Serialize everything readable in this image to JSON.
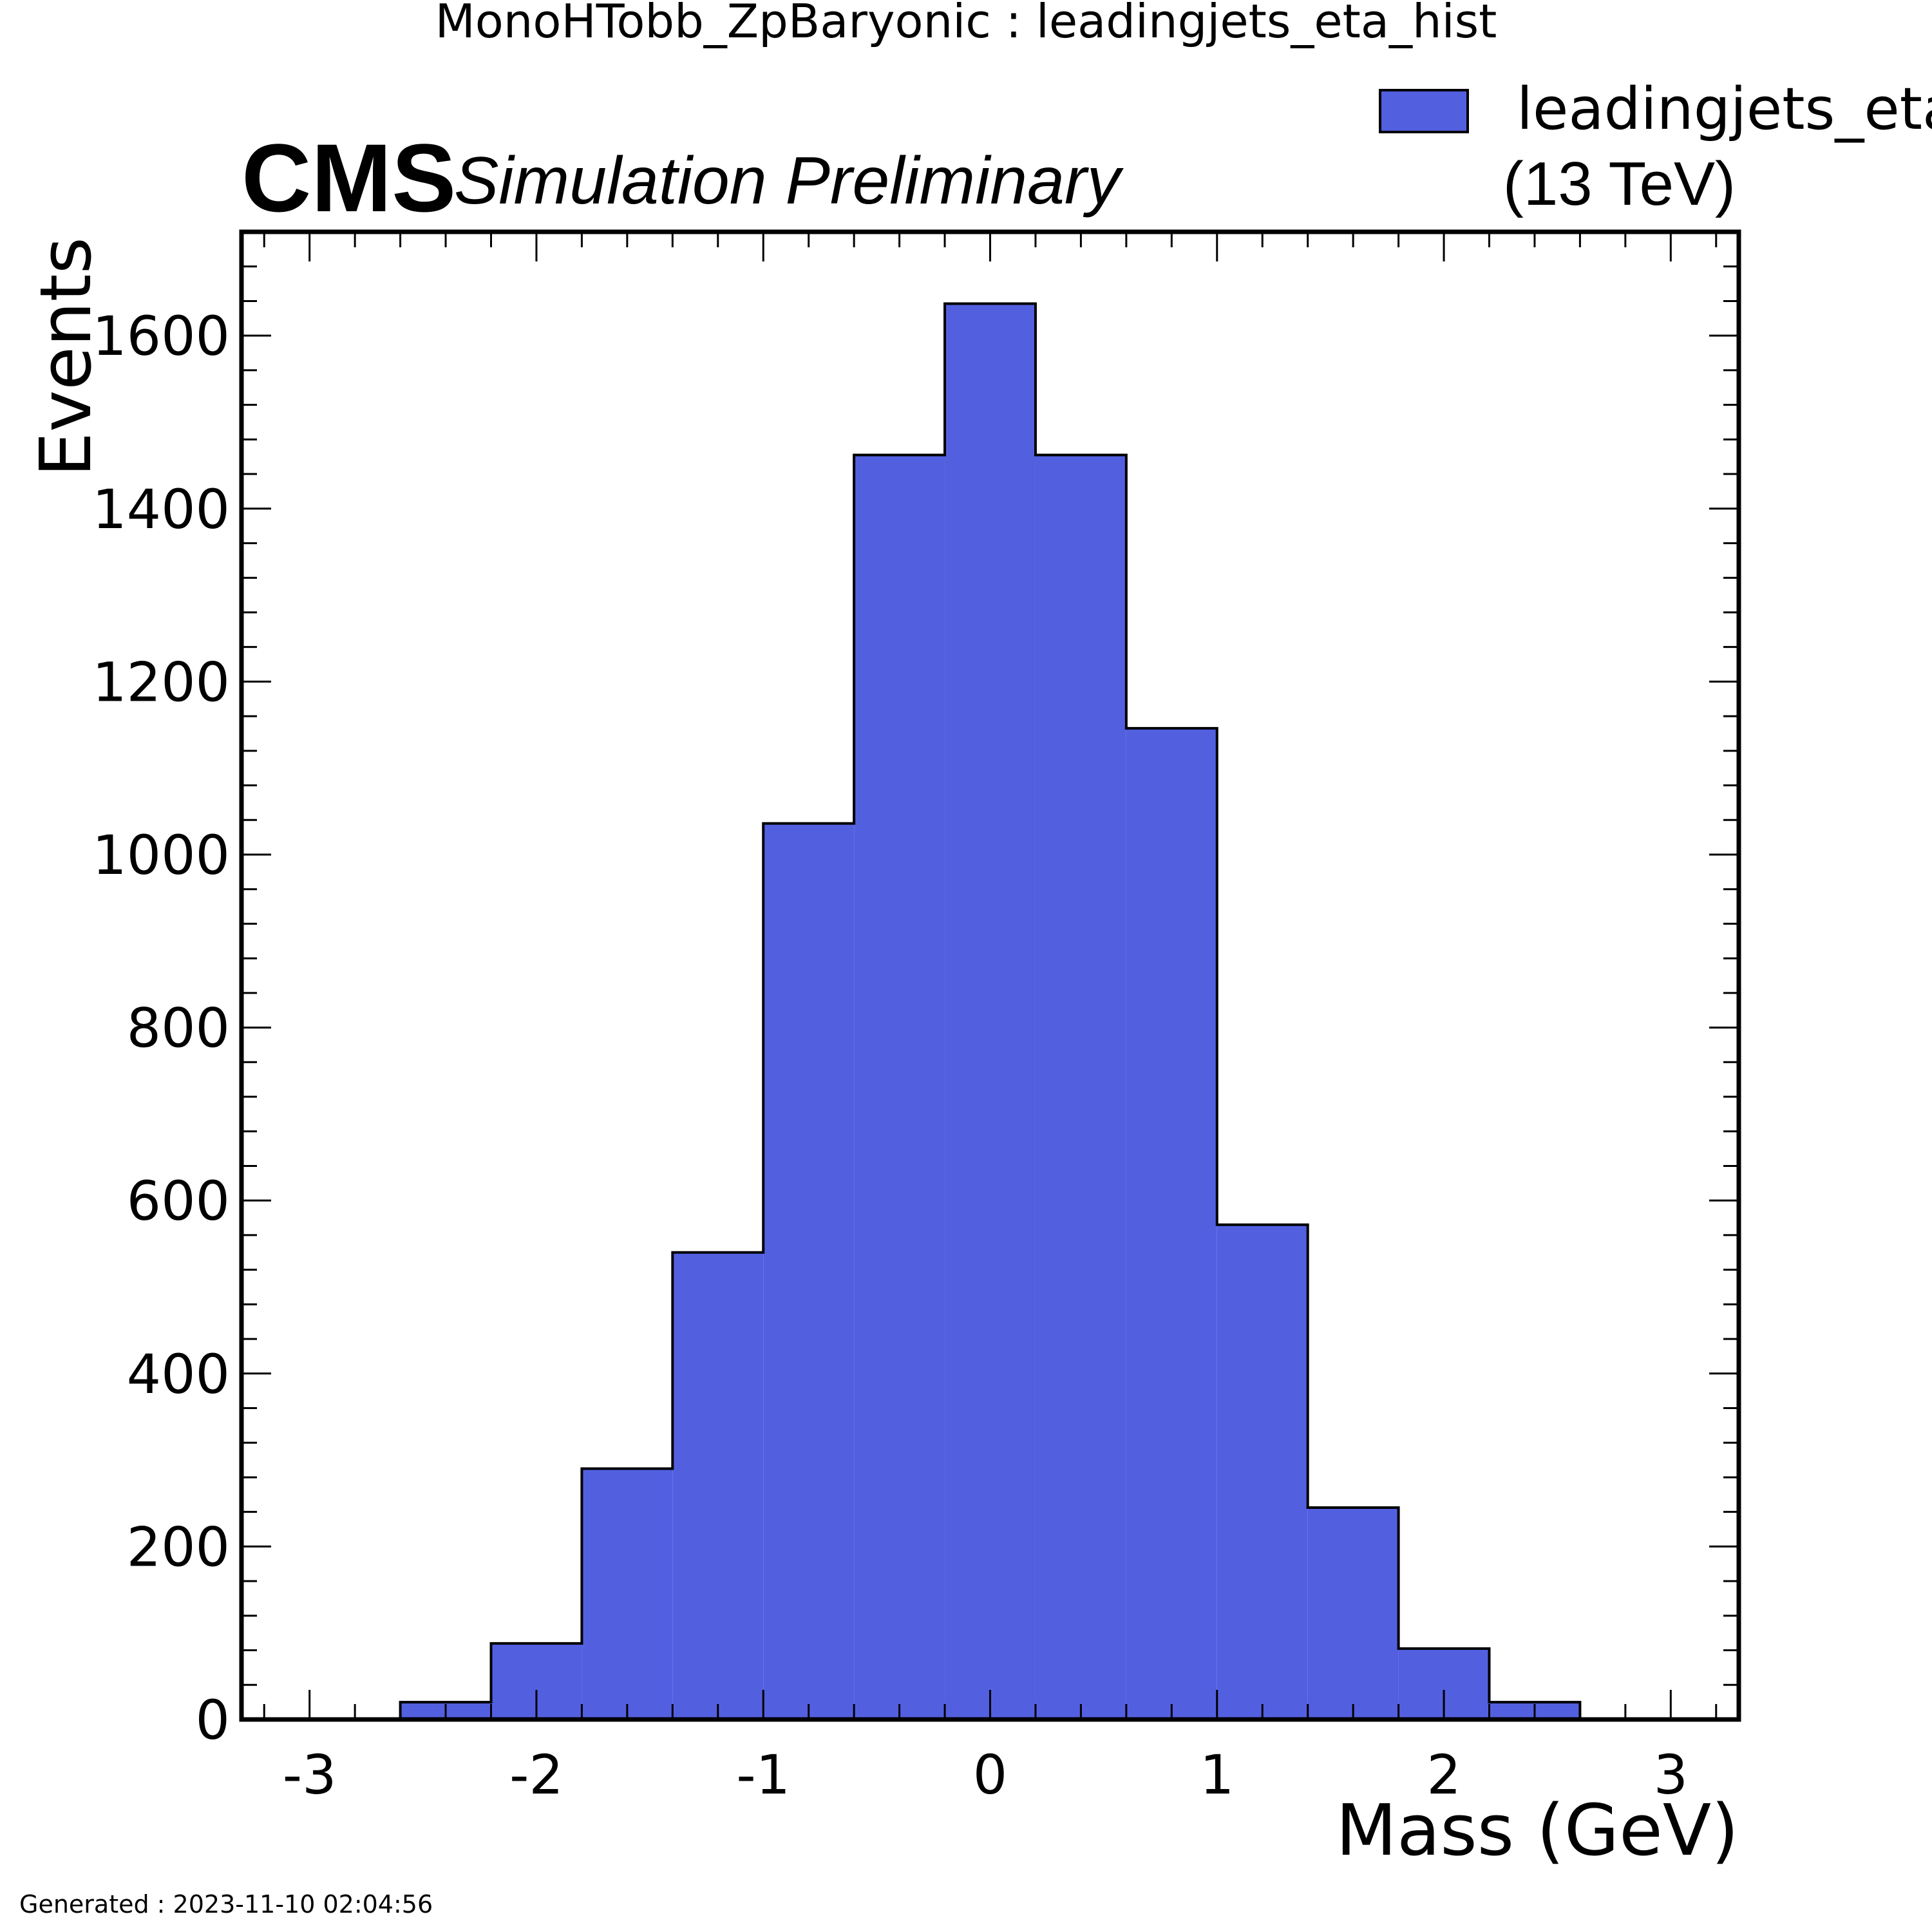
{
  "page": {
    "title": "MonoHTobb_ZpBaryonic : leadingjets_eta_hist",
    "footer": "Generated : 2023-11-10 02:04:56"
  },
  "cms": {
    "logo": "CMS",
    "label": "Simulation Preliminary",
    "energy": "(13 TeV)"
  },
  "chart_data": {
    "type": "bar",
    "histogram": true,
    "xlabel": "Mass (GeV)",
    "ylabel": "Events",
    "xlim": [
      -3.3,
      3.3
    ],
    "ylim": [
      0,
      1720
    ],
    "x_ticks": [
      -3,
      -2,
      -1,
      0,
      1,
      2,
      3
    ],
    "x_tick_labels": [
      "-3",
      "-2",
      "-1",
      "0",
      "1",
      "2",
      "3"
    ],
    "y_ticks": [
      0,
      200,
      400,
      600,
      800,
      1000,
      1200,
      1400,
      1600
    ],
    "y_tick_labels": [
      "0",
      "200",
      "400",
      "600",
      "800",
      "1000",
      "1200",
      "1400",
      "1600"
    ],
    "bin_edges": [
      -3.0,
      -2.6,
      -2.2,
      -1.8,
      -1.4,
      -1.0,
      -0.6,
      -0.2,
      0.2,
      0.6,
      1.0,
      1.4,
      1.8,
      2.2,
      2.6,
      3.0
    ],
    "series": [
      {
        "name": "leadingjets_eta_",
        "color": "#5260e0",
        "values": [
          0,
          20,
          88,
          290,
          540,
          1036,
          1462,
          1637,
          1462,
          1146,
          572,
          245,
          82,
          20,
          0
        ]
      }
    ],
    "legend_position": "top-right",
    "grid": false
  }
}
